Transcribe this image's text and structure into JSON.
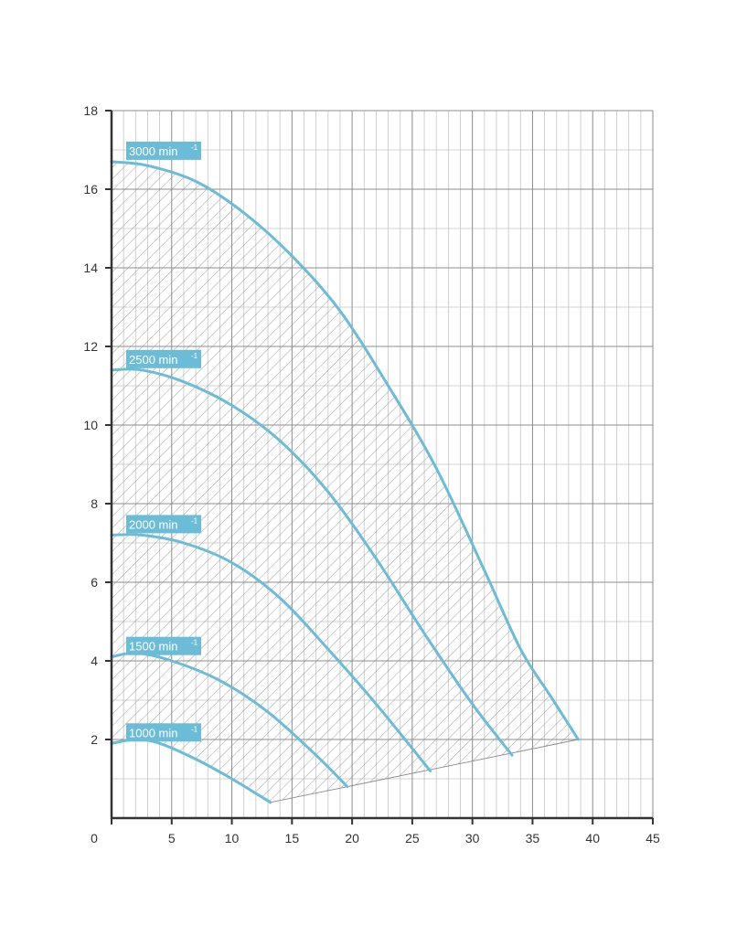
{
  "chart_data": {
    "type": "line",
    "title": "",
    "xlabel": "",
    "ylabel": "",
    "xlim": [
      0,
      45
    ],
    "ylim": [
      0,
      18
    ],
    "x_ticks": [
      "0",
      "5",
      "10",
      "15",
      "20",
      "25",
      "30",
      "35",
      "40",
      "45"
    ],
    "y_ticks": [
      "2",
      "4",
      "6",
      "8",
      "10",
      "12",
      "14",
      "16",
      "18"
    ],
    "grid": true,
    "operating_area_hatched": true,
    "colors": {
      "curve": "#6bbcd6",
      "label_bg": "#6bbcd6",
      "grid_major": "#8c8c8c",
      "grid_minor": "#c4c4c4",
      "hatch": "#8a8a8a",
      "axis": "#333333"
    },
    "series": [
      {
        "name": "3000 min",
        "name_sup": "-1",
        "x": [
          0,
          3,
          7,
          11,
          15,
          19,
          23,
          27,
          31,
          34,
          36.5,
          38.8
        ],
        "y": [
          16.7,
          16.6,
          16.2,
          15.4,
          14.3,
          12.9,
          11.0,
          8.9,
          6.3,
          4.3,
          3.1,
          2.0
        ]
      },
      {
        "name": "2500 min",
        "name_sup": "-1",
        "x": [
          0,
          2.5,
          6,
          10,
          14,
          18,
          22,
          26,
          30,
          33.3
        ],
        "y": [
          11.4,
          11.4,
          11.1,
          10.5,
          9.6,
          8.3,
          6.6,
          4.7,
          2.9,
          1.6
        ]
      },
      {
        "name": "2000 min",
        "name_sup": "-1",
        "x": [
          0,
          2.5,
          6,
          10,
          14,
          18,
          22,
          26.5
        ],
        "y": [
          7.2,
          7.2,
          7.0,
          6.5,
          5.6,
          4.3,
          2.9,
          1.2
        ]
      },
      {
        "name": "1500 min",
        "name_sup": "-1",
        "x": [
          0,
          2,
          5,
          9,
          13,
          17,
          19.6
        ],
        "y": [
          4.1,
          4.2,
          4.0,
          3.5,
          2.7,
          1.6,
          0.8
        ]
      },
      {
        "name": "1000 min",
        "name_sup": "-1",
        "x": [
          0,
          2,
          4,
          7,
          10,
          13.2
        ],
        "y": [
          1.9,
          2.0,
          1.9,
          1.5,
          1.0,
          0.4
        ]
      }
    ]
  }
}
